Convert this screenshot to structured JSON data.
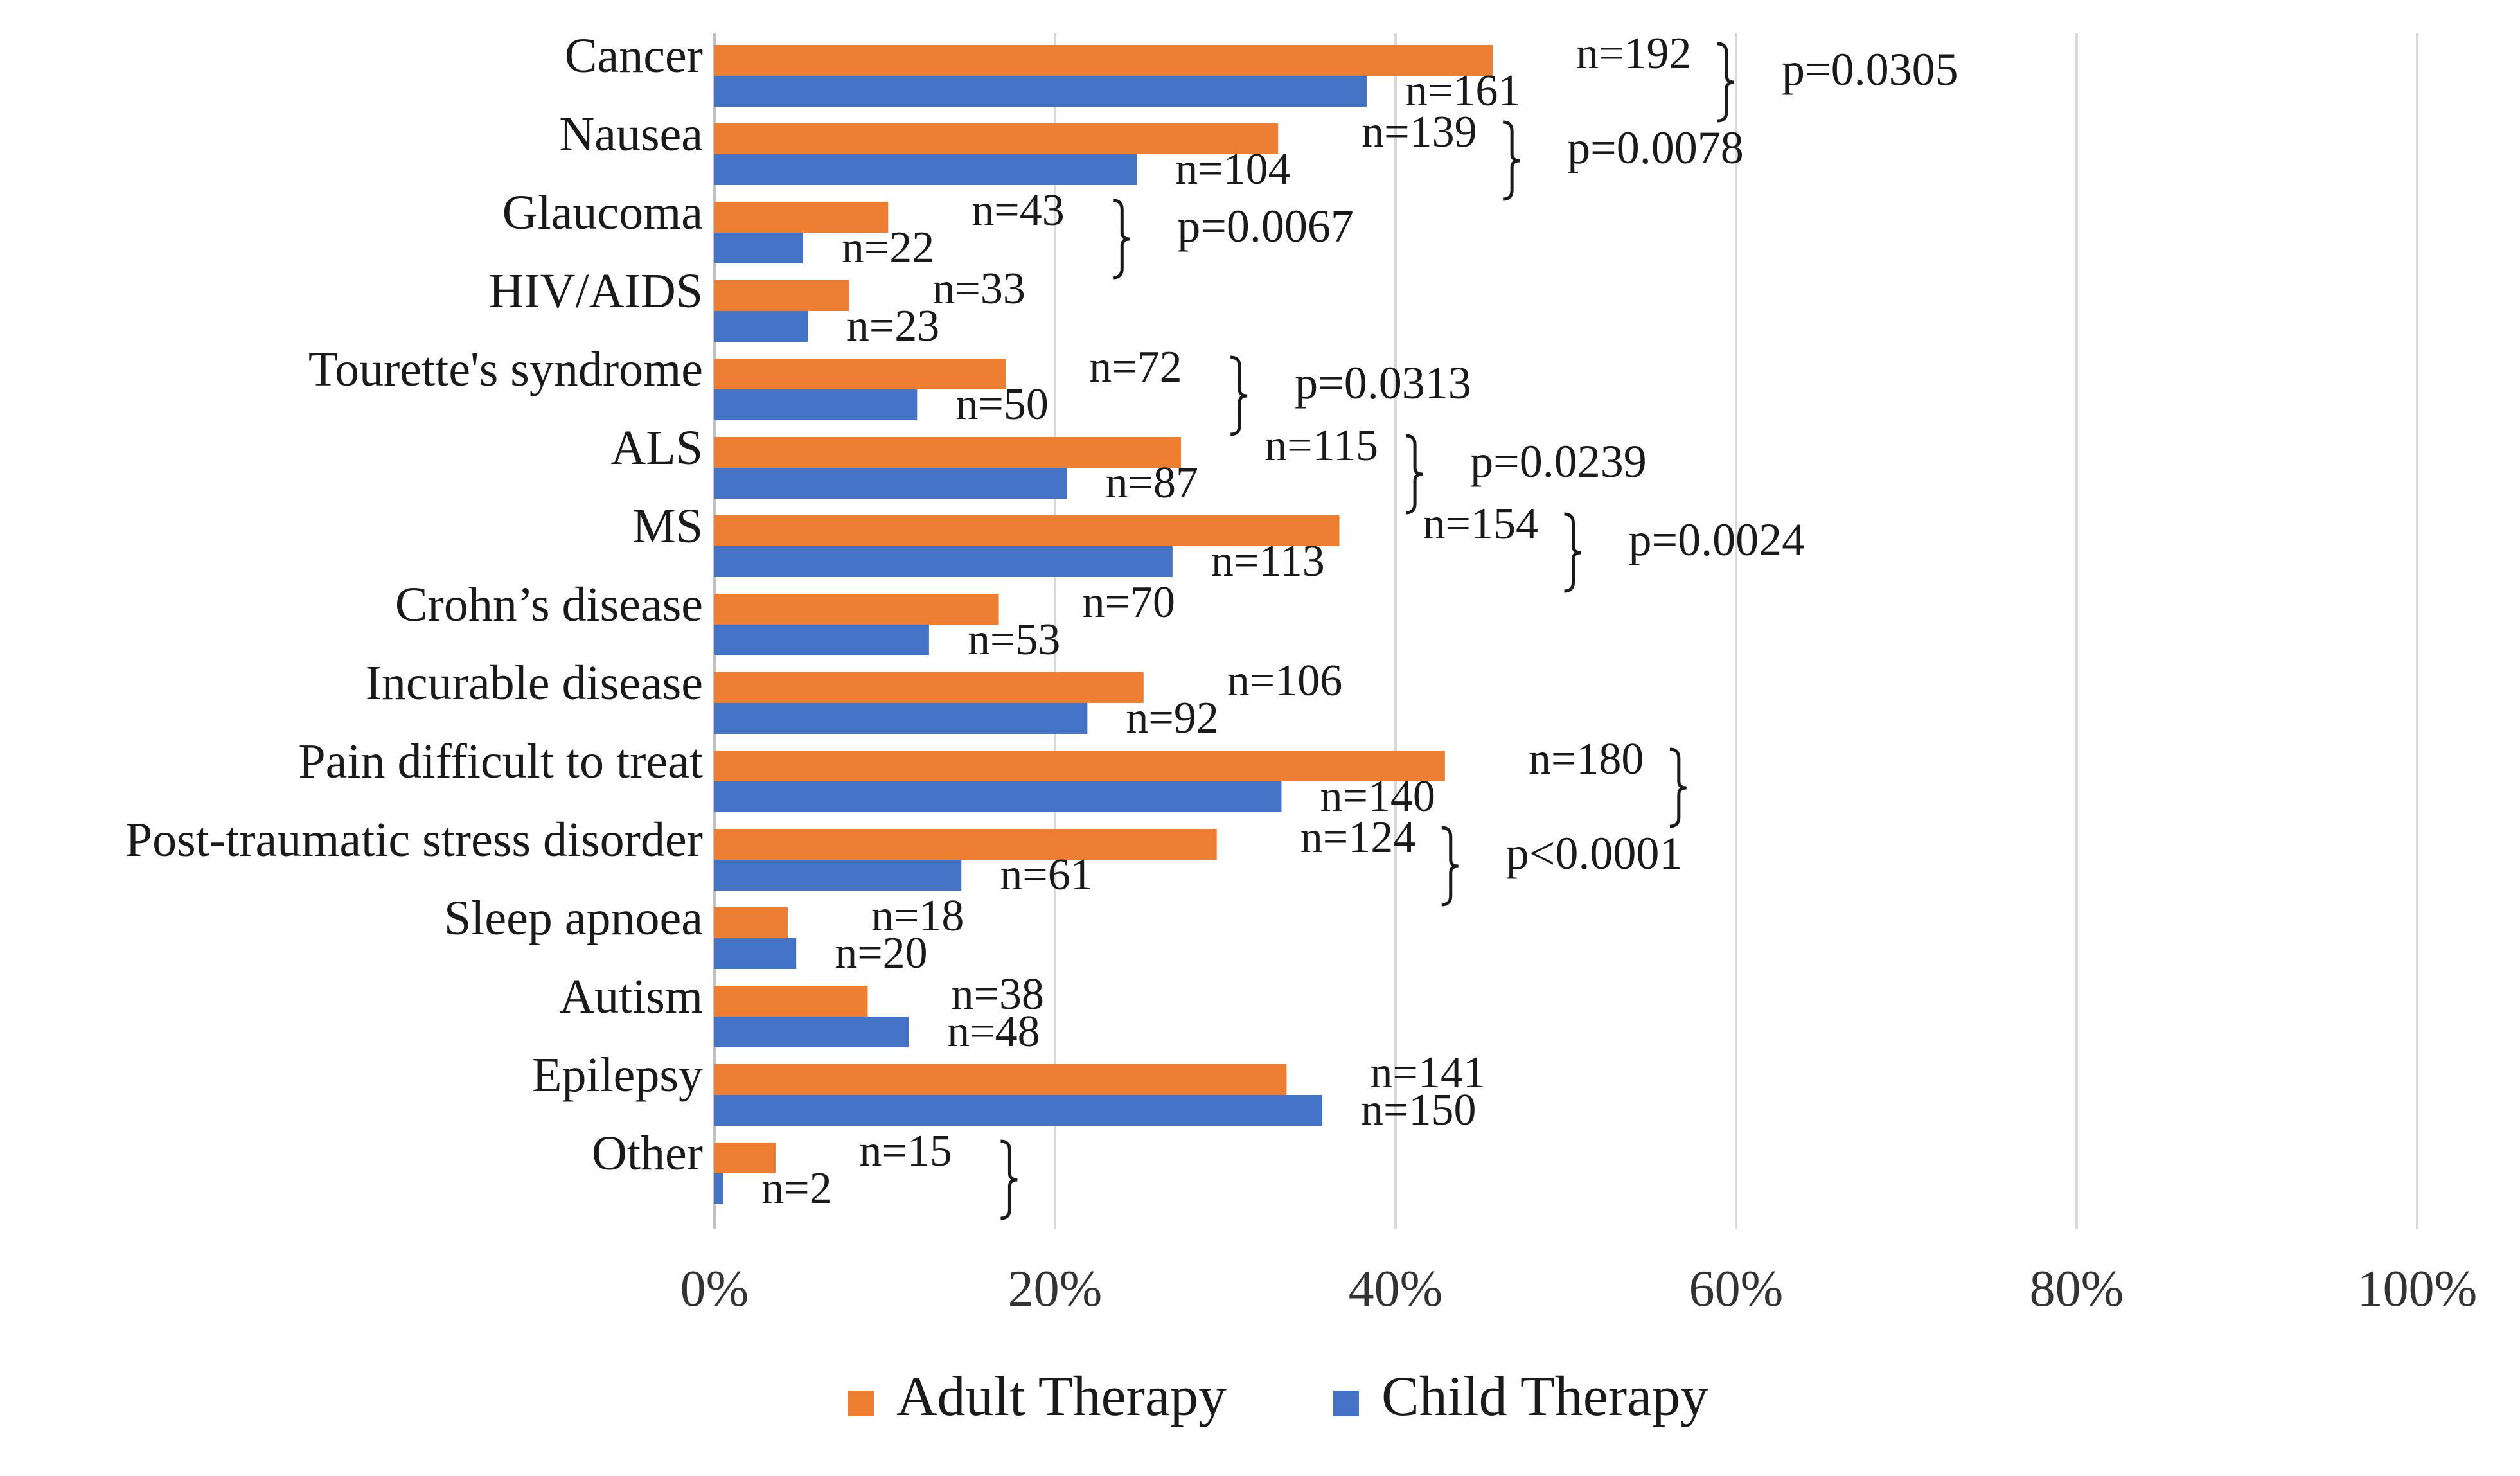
{
  "chart_data": {
    "type": "bar",
    "orientation": "horizontal",
    "categories": [
      "Cancer",
      "Nausea",
      "Glaucoma",
      "HIV/AIDS",
      "Tourette's syndrome",
      "ALS",
      "MS",
      "Crohn’s disease",
      "Incurable disease",
      "Pain difficult to treat",
      "Post-traumatic stress disorder",
      "Sleep apnoea",
      "Autism",
      "Epilepsy",
      "Other"
    ],
    "series": [
      {
        "name": "Adult Therapy",
        "color": "#ED7D31",
        "values": [
          45.7,
          33.1,
          10.2,
          7.9,
          17.1,
          27.4,
          36.7,
          16.7,
          25.2,
          42.9,
          29.5,
          4.3,
          9.0,
          33.6,
          3.6
        ],
        "labels": [
          "n=192",
          "n=139",
          "n=43",
          "n=33",
          "n=72",
          "n=115",
          "n=154",
          "n=70",
          "n=106",
          "n=180",
          "n=124",
          "n=18",
          "n=38",
          "n=141",
          "n=15"
        ]
      },
      {
        "name": "Child Therapy",
        "color": "#4472C4",
        "values": [
          38.3,
          24.8,
          5.2,
          5.5,
          11.9,
          20.7,
          26.9,
          12.6,
          21.9,
          33.3,
          14.5,
          4.8,
          11.4,
          35.7,
          0.5
        ],
        "labels": [
          "n=161",
          "n=104",
          "n=22",
          "n=23",
          "n=50",
          "n=87",
          "n=113",
          "n=53",
          "n=92",
          "n=140",
          "n=61",
          "n=20",
          "n=48",
          "n=150",
          "n=2"
        ]
      }
    ],
    "xlim": [
      0,
      100
    ],
    "x_ticks": [
      "0%",
      "20%",
      "40%",
      "60%",
      "80%",
      "100%"
    ],
    "grid": "vertical",
    "legend_position": "bottom",
    "annotations": [
      {
        "category": "Cancer",
        "text": "p=0.0305"
      },
      {
        "category": "Nausea",
        "text": "p=0.0078"
      },
      {
        "category": "Glaucoma",
        "text": "p=0.0067"
      },
      {
        "category": "Tourette's syndrome",
        "text": "p=0.0313"
      },
      {
        "category": "ALS",
        "text": "p=0.0239"
      },
      {
        "category": "MS",
        "text": "p=0.0024"
      },
      {
        "category": "Pain difficult to treat",
        "text": ""
      },
      {
        "category": "Post-traumatic stress disorder",
        "text": "p<0.0001"
      },
      {
        "category": "Other",
        "text": ""
      }
    ]
  }
}
